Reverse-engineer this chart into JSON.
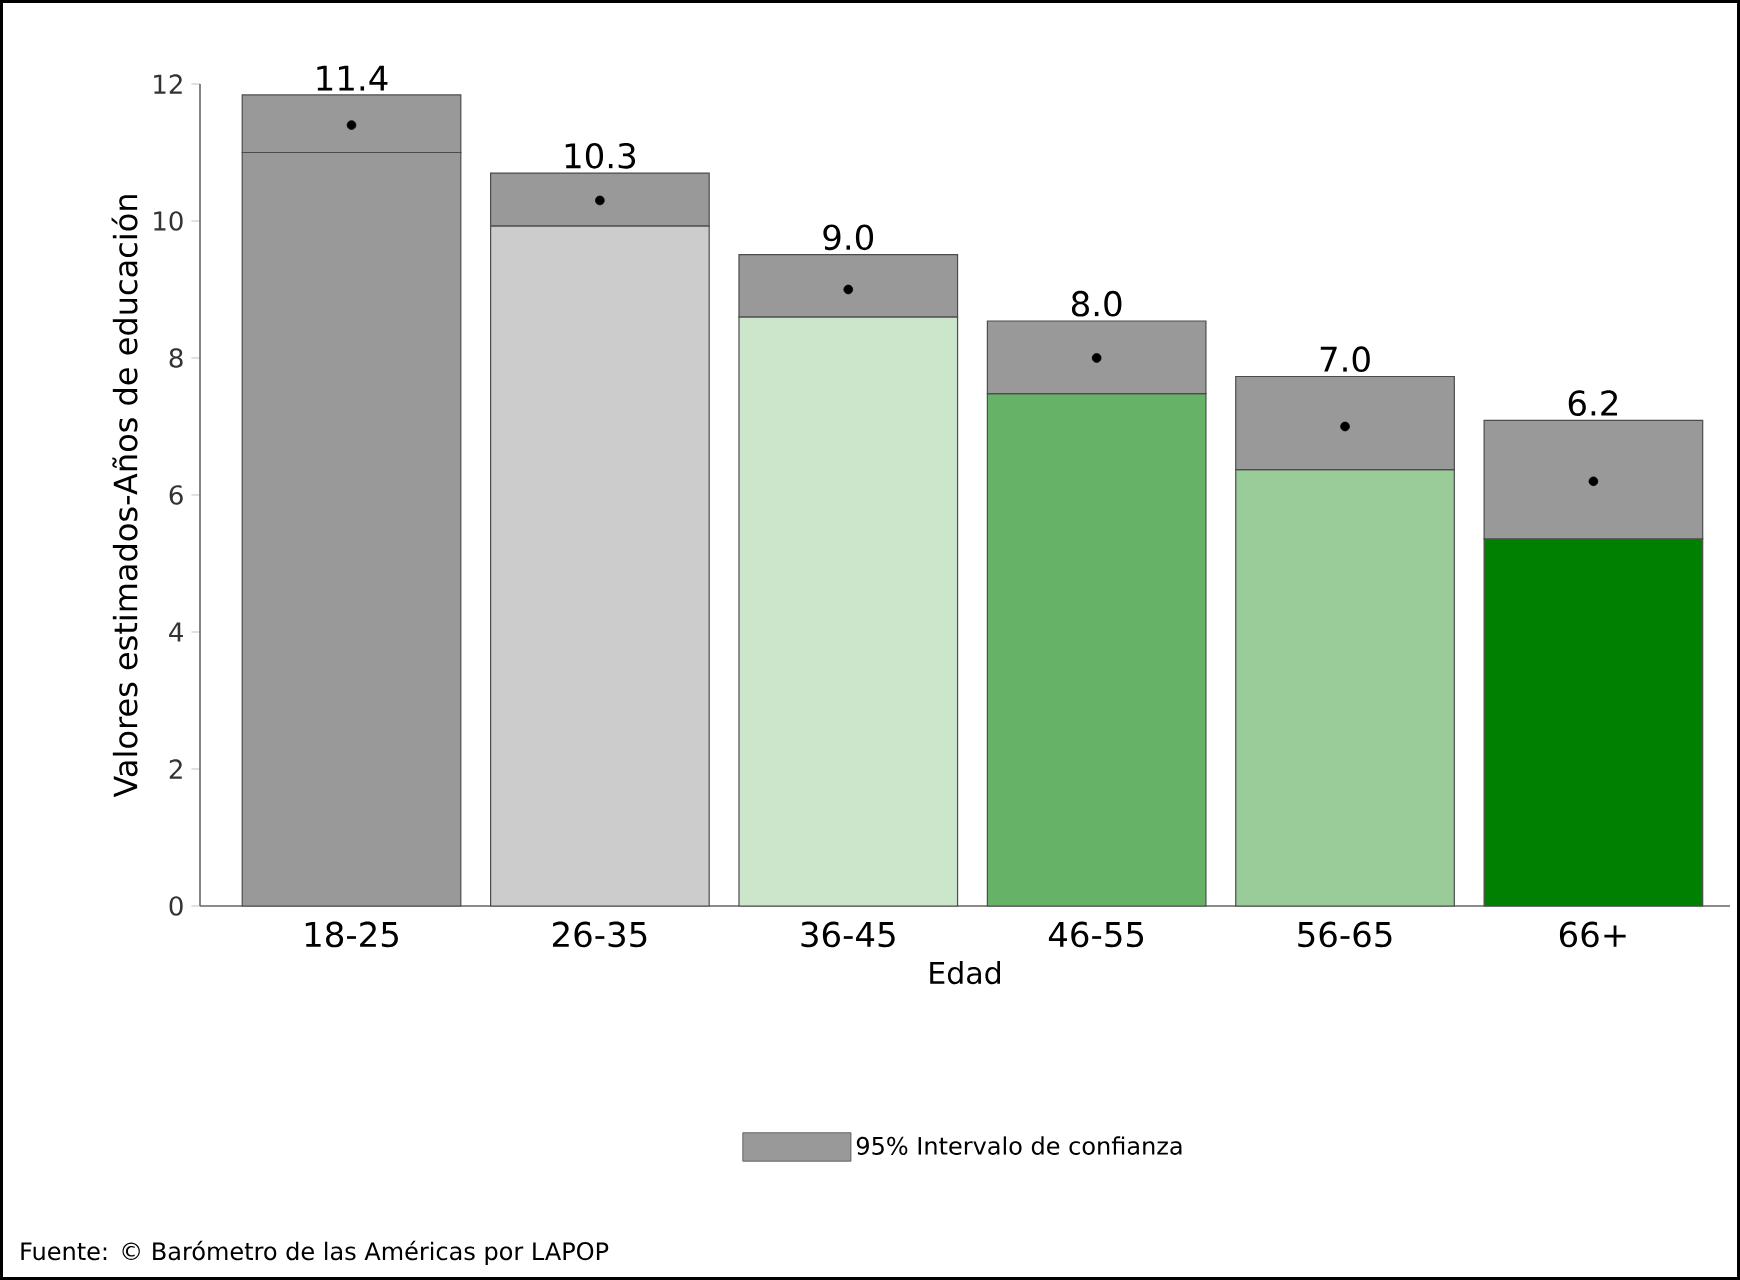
{
  "chart_data": {
    "type": "bar",
    "stacked": true,
    "categories": [
      "18-25",
      "26-35",
      "36-45",
      "46-55",
      "56-65",
      "66+"
    ],
    "series": [
      {
        "colors": [
          "#999999",
          "#cccccc",
          "#cce6cc",
          "#66b266",
          "#99cc99",
          "#008000"
        ],
        "values": [
          11.0,
          9.93,
          8.6,
          7.48,
          6.37,
          5.36
        ]
      },
      {
        "name": "95% Intervalo de confianza",
        "color": "#999999",
        "values": [
          0.84,
          0.77,
          0.91,
          1.06,
          1.36,
          1.73
        ]
      },
      {
        "type": "scatter",
        "marker": "circle",
        "color": "#000000",
        "x": [
          "18-25",
          "26-35",
          "36-45",
          "46-55",
          "56-65",
          "66+"
        ],
        "values": [
          11.4,
          10.3,
          9.0,
          8.0,
          7.0,
          6.2
        ],
        "value_labels": [
          "11.4",
          "10.3",
          "9.0",
          "8.0",
          "7.0",
          "6.2"
        ]
      }
    ],
    "xlabel": "Edad",
    "ylabel": "Valores estimados-Años de educación",
    "ylim": [
      0,
      12
    ],
    "yticks": [
      0,
      2,
      4,
      6,
      8,
      10,
      12
    ],
    "legend": "bottom",
    "annotations": [
      "Fuente: © Barómetro de las Américas por LAPOP"
    ]
  }
}
